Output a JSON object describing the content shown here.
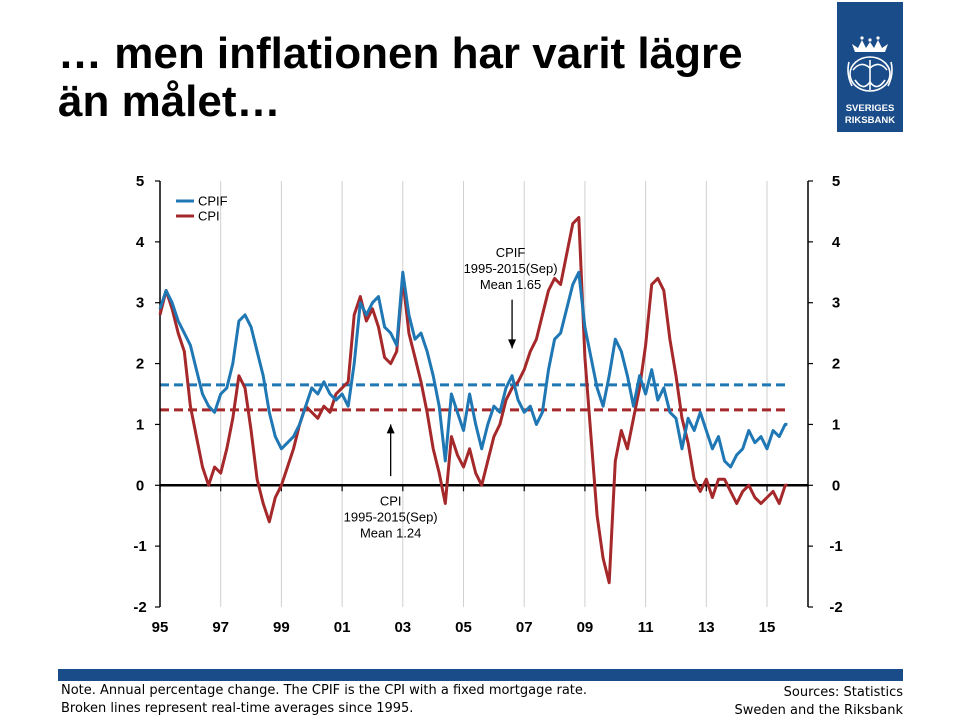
{
  "slide": {
    "title_line1": "… men inflationen har varit lägre",
    "title_line2": "än målet…"
  },
  "logo": {
    "line1": "SVERIGES",
    "line2": "RIKSBANK",
    "background": "#1a4c8a"
  },
  "footer": {
    "note_line1": "Note. Annual percentage change. The CPIF is the CPI with a fixed mortgage rate.",
    "note_line2": "Broken lines represent real-time averages since 1995.",
    "sources_line1": "Sources: Statistics",
    "sources_line2": "Sweden and the Riksbank",
    "bar_color": "#1a4c8a"
  },
  "chart_data": {
    "type": "line",
    "title": "",
    "xlabel": "",
    "ylabel": "",
    "xlim": [
      1995.0,
      2016.35
    ],
    "ylim": [
      -2,
      5
    ],
    "x_ticks": [
      1995,
      1997,
      1999,
      2001,
      2003,
      2005,
      2007,
      2009,
      2011,
      2013,
      2015
    ],
    "x_tick_labels": [
      "95",
      "97",
      "99",
      "01",
      "03",
      "05",
      "07",
      "09",
      "11",
      "13",
      "15"
    ],
    "y_ticks": [
      -2,
      -1,
      0,
      1,
      2,
      3,
      4,
      5
    ],
    "y_tick_labels_left": [
      "-2",
      "-1",
      "0",
      "1",
      "2",
      "3",
      "4",
      "5"
    ],
    "y_tick_labels_right": [
      "-2",
      "-1",
      "0",
      "1",
      "2",
      "3",
      "4",
      "5"
    ],
    "vertical_grid": true,
    "horizontal_grid": false,
    "zero_line": true,
    "legend_position": "top-left",
    "series": [
      {
        "name": "CPIF",
        "color": "#1f77b4",
        "points": [
          [
            1995.0,
            2.9
          ],
          [
            1995.2,
            3.2
          ],
          [
            1995.4,
            3.0
          ],
          [
            1995.6,
            2.7
          ],
          [
            1995.8,
            2.5
          ],
          [
            1996.0,
            2.3
          ],
          [
            1996.2,
            1.9
          ],
          [
            1996.4,
            1.5
          ],
          [
            1996.6,
            1.3
          ],
          [
            1996.8,
            1.2
          ],
          [
            1997.0,
            1.5
          ],
          [
            1997.2,
            1.6
          ],
          [
            1997.4,
            2.0
          ],
          [
            1997.6,
            2.7
          ],
          [
            1997.8,
            2.8
          ],
          [
            1998.0,
            2.6
          ],
          [
            1998.2,
            2.2
          ],
          [
            1998.4,
            1.8
          ],
          [
            1998.6,
            1.2
          ],
          [
            1998.8,
            0.8
          ],
          [
            1999.0,
            0.6
          ],
          [
            1999.2,
            0.7
          ],
          [
            1999.4,
            0.8
          ],
          [
            1999.6,
            1.0
          ],
          [
            1999.8,
            1.3
          ],
          [
            2000.0,
            1.6
          ],
          [
            2000.2,
            1.5
          ],
          [
            2000.4,
            1.7
          ],
          [
            2000.6,
            1.5
          ],
          [
            2000.8,
            1.4
          ],
          [
            2001.0,
            1.5
          ],
          [
            2001.2,
            1.3
          ],
          [
            2001.4,
            2.0
          ],
          [
            2001.6,
            3.0
          ],
          [
            2001.8,
            2.8
          ],
          [
            2002.0,
            3.0
          ],
          [
            2002.2,
            3.1
          ],
          [
            2002.4,
            2.6
          ],
          [
            2002.6,
            2.5
          ],
          [
            2002.8,
            2.3
          ],
          [
            2003.0,
            3.5
          ],
          [
            2003.2,
            2.8
          ],
          [
            2003.4,
            2.4
          ],
          [
            2003.6,
            2.5
          ],
          [
            2003.8,
            2.2
          ],
          [
            2004.0,
            1.8
          ],
          [
            2004.2,
            1.3
          ],
          [
            2004.4,
            0.4
          ],
          [
            2004.6,
            1.5
          ],
          [
            2004.8,
            1.2
          ],
          [
            2005.0,
            0.9
          ],
          [
            2005.2,
            1.5
          ],
          [
            2005.4,
            1.0
          ],
          [
            2005.6,
            0.6
          ],
          [
            2005.8,
            1.0
          ],
          [
            2006.0,
            1.3
          ],
          [
            2006.2,
            1.2
          ],
          [
            2006.4,
            1.6
          ],
          [
            2006.6,
            1.8
          ],
          [
            2006.8,
            1.4
          ],
          [
            2007.0,
            1.2
          ],
          [
            2007.2,
            1.3
          ],
          [
            2007.4,
            1.0
          ],
          [
            2007.6,
            1.2
          ],
          [
            2007.8,
            1.9
          ],
          [
            2008.0,
            2.4
          ],
          [
            2008.2,
            2.5
          ],
          [
            2008.4,
            2.9
          ],
          [
            2008.6,
            3.3
          ],
          [
            2008.8,
            3.5
          ],
          [
            2009.0,
            2.6
          ],
          [
            2009.2,
            2.1
          ],
          [
            2009.4,
            1.6
          ],
          [
            2009.6,
            1.3
          ],
          [
            2009.8,
            1.8
          ],
          [
            2010.0,
            2.4
          ],
          [
            2010.2,
            2.2
          ],
          [
            2010.4,
            1.8
          ],
          [
            2010.6,
            1.3
          ],
          [
            2010.8,
            1.8
          ],
          [
            2011.0,
            1.5
          ],
          [
            2011.2,
            1.9
          ],
          [
            2011.4,
            1.4
          ],
          [
            2011.6,
            1.6
          ],
          [
            2011.8,
            1.2
          ],
          [
            2012.0,
            1.1
          ],
          [
            2012.2,
            0.6
          ],
          [
            2012.4,
            1.1
          ],
          [
            2012.6,
            0.9
          ],
          [
            2012.8,
            1.2
          ],
          [
            2013.0,
            0.9
          ],
          [
            2013.2,
            0.6
          ],
          [
            2013.4,
            0.8
          ],
          [
            2013.6,
            0.4
          ],
          [
            2013.8,
            0.3
          ],
          [
            2014.0,
            0.5
          ],
          [
            2014.2,
            0.6
          ],
          [
            2014.4,
            0.9
          ],
          [
            2014.6,
            0.7
          ],
          [
            2014.8,
            0.8
          ],
          [
            2015.0,
            0.6
          ],
          [
            2015.2,
            0.9
          ],
          [
            2015.4,
            0.8
          ],
          [
            2015.6,
            1.0
          ],
          [
            2015.67,
            1.0
          ]
        ]
      },
      {
        "name": "CPI",
        "color": "#a5282a",
        "points": [
          [
            1995.0,
            2.8
          ],
          [
            1995.2,
            3.2
          ],
          [
            1995.4,
            2.9
          ],
          [
            1995.6,
            2.5
          ],
          [
            1995.8,
            2.2
          ],
          [
            1996.0,
            1.3
          ],
          [
            1996.2,
            0.8
          ],
          [
            1996.4,
            0.3
          ],
          [
            1996.6,
            0.0
          ],
          [
            1996.8,
            0.3
          ],
          [
            1997.0,
            0.2
          ],
          [
            1997.2,
            0.6
          ],
          [
            1997.4,
            1.1
          ],
          [
            1997.6,
            1.8
          ],
          [
            1997.8,
            1.6
          ],
          [
            1998.0,
            0.9
          ],
          [
            1998.2,
            0.1
          ],
          [
            1998.4,
            -0.3
          ],
          [
            1998.6,
            -0.6
          ],
          [
            1998.8,
            -0.2
          ],
          [
            1999.0,
            0.0
          ],
          [
            1999.2,
            0.3
          ],
          [
            1999.4,
            0.6
          ],
          [
            1999.6,
            1.0
          ],
          [
            1999.8,
            1.3
          ],
          [
            2000.0,
            1.2
          ],
          [
            2000.2,
            1.1
          ],
          [
            2000.4,
            1.3
          ],
          [
            2000.6,
            1.2
          ],
          [
            2000.8,
            1.5
          ],
          [
            2001.0,
            1.6
          ],
          [
            2001.2,
            1.7
          ],
          [
            2001.4,
            2.8
          ],
          [
            2001.6,
            3.1
          ],
          [
            2001.8,
            2.7
          ],
          [
            2002.0,
            2.9
          ],
          [
            2002.2,
            2.6
          ],
          [
            2002.4,
            2.1
          ],
          [
            2002.6,
            2.0
          ],
          [
            2002.8,
            2.2
          ],
          [
            2003.0,
            3.4
          ],
          [
            2003.2,
            2.5
          ],
          [
            2003.4,
            2.1
          ],
          [
            2003.6,
            1.7
          ],
          [
            2003.8,
            1.2
          ],
          [
            2004.0,
            0.6
          ],
          [
            2004.2,
            0.2
          ],
          [
            2004.4,
            -0.3
          ],
          [
            2004.6,
            0.8
          ],
          [
            2004.8,
            0.5
          ],
          [
            2005.0,
            0.3
          ],
          [
            2005.2,
            0.6
          ],
          [
            2005.4,
            0.2
          ],
          [
            2005.6,
            0.0
          ],
          [
            2005.8,
            0.4
          ],
          [
            2006.0,
            0.8
          ],
          [
            2006.2,
            1.0
          ],
          [
            2006.4,
            1.4
          ],
          [
            2006.6,
            1.6
          ],
          [
            2006.8,
            1.7
          ],
          [
            2007.0,
            1.9
          ],
          [
            2007.2,
            2.2
          ],
          [
            2007.4,
            2.4
          ],
          [
            2007.6,
            2.8
          ],
          [
            2007.8,
            3.2
          ],
          [
            2008.0,
            3.4
          ],
          [
            2008.2,
            3.3
          ],
          [
            2008.4,
            3.8
          ],
          [
            2008.6,
            4.3
          ],
          [
            2008.8,
            4.4
          ],
          [
            2009.0,
            2.1
          ],
          [
            2009.2,
            0.8
          ],
          [
            2009.4,
            -0.5
          ],
          [
            2009.6,
            -1.2
          ],
          [
            2009.8,
            -1.6
          ],
          [
            2010.0,
            0.4
          ],
          [
            2010.2,
            0.9
          ],
          [
            2010.4,
            0.6
          ],
          [
            2010.6,
            1.1
          ],
          [
            2010.8,
            1.6
          ],
          [
            2011.0,
            2.3
          ],
          [
            2011.2,
            3.3
          ],
          [
            2011.4,
            3.4
          ],
          [
            2011.6,
            3.2
          ],
          [
            2011.8,
            2.4
          ],
          [
            2012.0,
            1.8
          ],
          [
            2012.2,
            1.1
          ],
          [
            2012.4,
            0.7
          ],
          [
            2012.6,
            0.1
          ],
          [
            2012.8,
            -0.1
          ],
          [
            2013.0,
            0.1
          ],
          [
            2013.2,
            -0.2
          ],
          [
            2013.4,
            0.1
          ],
          [
            2013.6,
            0.1
          ],
          [
            2013.8,
            -0.1
          ],
          [
            2014.0,
            -0.3
          ],
          [
            2014.2,
            -0.1
          ],
          [
            2014.4,
            0.0
          ],
          [
            2014.6,
            -0.2
          ],
          [
            2014.8,
            -0.3
          ],
          [
            2015.0,
            -0.2
          ],
          [
            2015.2,
            -0.1
          ],
          [
            2015.4,
            -0.3
          ],
          [
            2015.6,
            0.0
          ],
          [
            2015.67,
            0.0
          ]
        ]
      }
    ],
    "reference_lines": [
      {
        "series": "CPIF",
        "value": 1.65,
        "from": 1995.0,
        "to": 2015.75,
        "style": "dashed",
        "color": "#1f77b4"
      },
      {
        "series": "CPI",
        "value": 1.24,
        "from": 1995.0,
        "to": 2015.75,
        "style": "dashed",
        "color": "#a5282a"
      }
    ],
    "annotations": [
      {
        "id": "cpif",
        "lines": [
          "CPIF",
          "1995-2015(Sep)",
          "Mean 1.65"
        ],
        "text_x": 2006.55,
        "text_y": 3.75,
        "arrow_from": [
          2006.6,
          3.05
        ],
        "arrow_to": [
          2006.6,
          2.25
        ]
      },
      {
        "id": "cpi",
        "lines": [
          "CPI",
          "1995-2015(Sep)",
          "Mean 1.24"
        ],
        "text_x": 2002.6,
        "text_y": -0.33,
        "arrow_from": [
          2002.6,
          0.15
        ],
        "arrow_to": [
          2002.6,
          1.0
        ]
      }
    ]
  }
}
